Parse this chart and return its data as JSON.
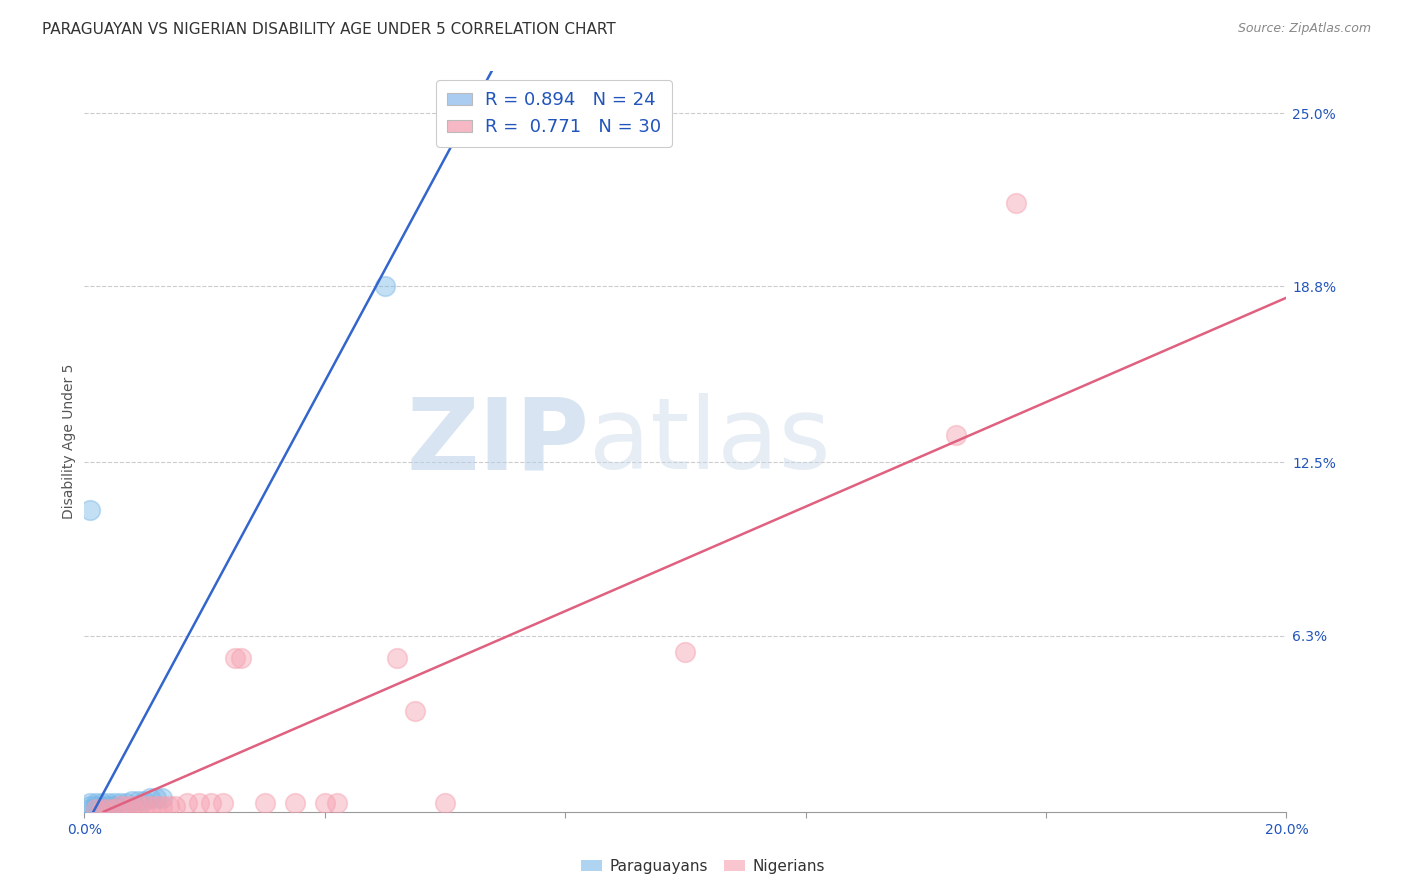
{
  "title": "PARAGUAYAN VS NIGERIAN DISABILITY AGE UNDER 5 CORRELATION CHART",
  "source": "Source: ZipAtlas.com",
  "ylabel": "Disability Age Under 5",
  "xlim": [
    0.0,
    0.2
  ],
  "ylim": [
    0.0,
    0.265
  ],
  "xticks": [
    0.0,
    0.04,
    0.08,
    0.12,
    0.16,
    0.2
  ],
  "xticklabels": [
    "0.0%",
    "",
    "",
    "",
    "",
    "20.0%"
  ],
  "ytick_right_labels": [
    "25.0%",
    "18.8%",
    "12.5%",
    "6.3%"
  ],
  "ytick_right_values": [
    0.25,
    0.188,
    0.125,
    0.063
  ],
  "legend_label1": "R = 0.894   N = 24",
  "legend_label2": "R =  0.771   N = 30",
  "legend_color1": "#aaccf0",
  "legend_color2": "#f5b8c4",
  "paraguayan_color": "#7ab8e8",
  "nigerian_color": "#f5a0b0",
  "paraguayan_line_color": "#3366cc",
  "nigerian_line_color": "#e06080",
  "watermark_zip": "ZIP",
  "watermark_atlas": "atlas",
  "paraguayan_points": [
    [
      0.001,
      0.001
    ],
    [
      0.001,
      0.002
    ],
    [
      0.001,
      0.003
    ],
    [
      0.002,
      0.001
    ],
    [
      0.002,
      0.002
    ],
    [
      0.002,
      0.003
    ],
    [
      0.003,
      0.001
    ],
    [
      0.003,
      0.002
    ],
    [
      0.003,
      0.003
    ],
    [
      0.004,
      0.001
    ],
    [
      0.004,
      0.002
    ],
    [
      0.004,
      0.003
    ],
    [
      0.005,
      0.002
    ],
    [
      0.005,
      0.003
    ],
    [
      0.006,
      0.003
    ],
    [
      0.007,
      0.003
    ],
    [
      0.008,
      0.004
    ],
    [
      0.009,
      0.004
    ],
    [
      0.01,
      0.004
    ],
    [
      0.011,
      0.005
    ],
    [
      0.012,
      0.005
    ],
    [
      0.013,
      0.005
    ],
    [
      0.001,
      0.108
    ],
    [
      0.05,
      0.188
    ]
  ],
  "nigerian_points": [
    [
      0.002,
      0.001
    ],
    [
      0.003,
      0.001
    ],
    [
      0.004,
      0.001
    ],
    [
      0.005,
      0.001
    ],
    [
      0.006,
      0.002
    ],
    [
      0.007,
      0.002
    ],
    [
      0.008,
      0.002
    ],
    [
      0.009,
      0.002
    ],
    [
      0.01,
      0.002
    ],
    [
      0.011,
      0.002
    ],
    [
      0.012,
      0.002
    ],
    [
      0.013,
      0.002
    ],
    [
      0.014,
      0.002
    ],
    [
      0.015,
      0.002
    ],
    [
      0.017,
      0.003
    ],
    [
      0.019,
      0.003
    ],
    [
      0.021,
      0.003
    ],
    [
      0.023,
      0.003
    ],
    [
      0.025,
      0.055
    ],
    [
      0.026,
      0.055
    ],
    [
      0.03,
      0.003
    ],
    [
      0.035,
      0.003
    ],
    [
      0.04,
      0.003
    ],
    [
      0.042,
      0.003
    ],
    [
      0.052,
      0.055
    ],
    [
      0.055,
      0.036
    ],
    [
      0.06,
      0.003
    ],
    [
      0.1,
      0.057
    ],
    [
      0.145,
      0.135
    ],
    [
      0.155,
      0.218
    ]
  ],
  "par_line_x": [
    0.003,
    0.2
  ],
  "par_line_slope": 4.0,
  "par_line_intercept": -0.006,
  "nig_line_x": [
    0.0,
    0.2
  ],
  "nig_line_slope": 0.935,
  "nig_line_intercept": -0.003,
  "title_fontsize": 11,
  "axis_fontsize": 10,
  "tick_fontsize": 10,
  "legend_fontsize": 13
}
